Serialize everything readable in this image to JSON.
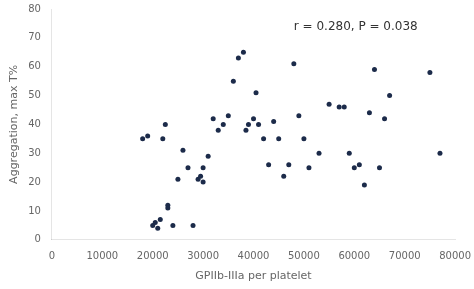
{
  "chart_data": {
    "type": "scatter",
    "xlabel": "GPIIb-IIIa per platelet",
    "ylabel": "Aggregation, max T%",
    "annotation": "r = 0.280, P = 0.038",
    "x": [
      18000,
      19000,
      20000,
      20500,
      21000,
      21500,
      22000,
      22500,
      23000,
      23000,
      24000,
      25000,
      26000,
      27000,
      28000,
      29000,
      29500,
      30000,
      30000,
      31000,
      32000,
      33000,
      34000,
      35000,
      36000,
      37000,
      38000,
      38500,
      39000,
      40000,
      40500,
      41000,
      42000,
      43000,
      44000,
      45000,
      46000,
      47000,
      48000,
      49000,
      50000,
      51000,
      53000,
      55000,
      57000,
      58000,
      59000,
      60000,
      61000,
      62000,
      63000,
      64000,
      65000,
      66000,
      67000,
      75000,
      77000
    ],
    "values": [
      35,
      36,
      5,
      6,
      4,
      7,
      35,
      40,
      12,
      11,
      5,
      21,
      31,
      25,
      5,
      21,
      22,
      20,
      25,
      29,
      42,
      38,
      40,
      43,
      55,
      63,
      65,
      38,
      40,
      42,
      51,
      40,
      35,
      26,
      41,
      35,
      22,
      26,
      61,
      43,
      35,
      25,
      30,
      47,
      46,
      46,
      30,
      25,
      26,
      19,
      44,
      59,
      25,
      42,
      50,
      58,
      30
    ],
    "color": "#1c2b4a",
    "marker": "circle",
    "xlim": [
      0,
      80000
    ],
    "ylim": [
      0,
      80
    ],
    "xticks": [
      0,
      10000,
      20000,
      30000,
      40000,
      50000,
      60000,
      70000,
      80000
    ],
    "yticks": [
      0,
      10,
      20,
      30,
      40,
      50,
      60,
      70,
      80
    ],
    "grid": false
  }
}
